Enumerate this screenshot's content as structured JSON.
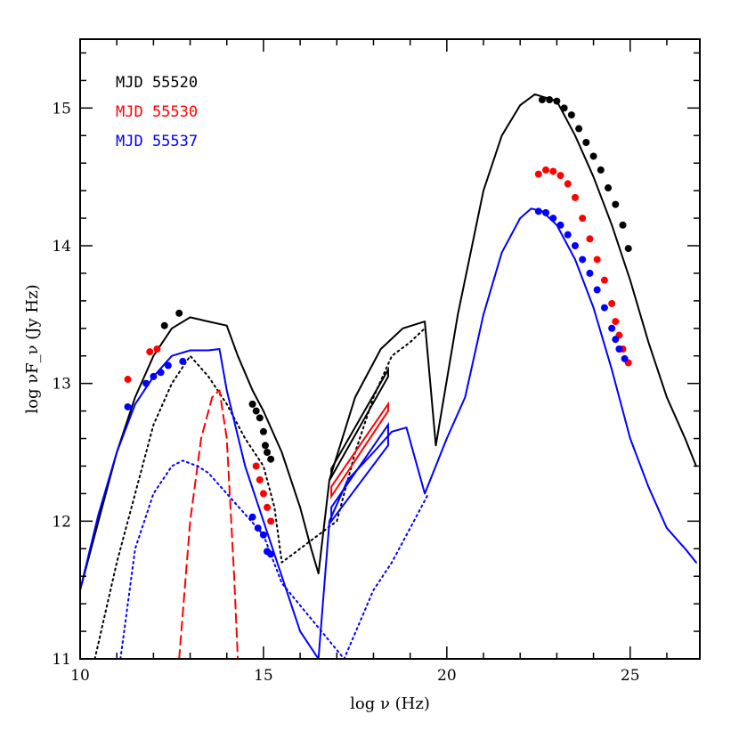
{
  "chart_data": {
    "type": "line",
    "title": "",
    "xlabel": "log ν (Hz)",
    "ylabel": "log νF_ν (Jy Hz)",
    "xlim": [
      10,
      26.9
    ],
    "ylim": [
      11,
      15.5
    ],
    "xticks": [
      10,
      15,
      20,
      25
    ],
    "yticks": [
      11,
      12,
      13,
      14,
      15
    ],
    "legend_position": "top-left",
    "legend": [
      {
        "label": "MJD 55520",
        "color": "#000000"
      },
      {
        "label": "MJD 55530",
        "color": "#ff0000"
      },
      {
        "label": "MJD 55537",
        "color": "#0000ff"
      }
    ],
    "lines": [
      {
        "epoch": "MJD 55520",
        "style": "solid",
        "color": "#000000",
        "points": [
          [
            10,
            11.5
          ],
          [
            10.5,
            12.0
          ],
          [
            11,
            12.5
          ],
          [
            11.5,
            12.9
          ],
          [
            12,
            13.2
          ],
          [
            12.5,
            13.4
          ],
          [
            13,
            13.48
          ],
          [
            13.5,
            13.45
          ],
          [
            14,
            13.42
          ],
          [
            14.3,
            13.2
          ],
          [
            14.7,
            12.95
          ],
          [
            15,
            12.8
          ],
          [
            15.5,
            12.5
          ],
          [
            16,
            12.1
          ],
          [
            16.3,
            11.8
          ],
          [
            16.5,
            11.62
          ],
          [
            16.8,
            12.3
          ],
          [
            17.5,
            12.9
          ],
          [
            18.2,
            13.25
          ],
          [
            18.8,
            13.4
          ],
          [
            19.4,
            13.45
          ],
          [
            19.7,
            12.55
          ],
          [
            20.3,
            13.5
          ],
          [
            21,
            14.4
          ],
          [
            21.5,
            14.8
          ],
          [
            22,
            15.02
          ],
          [
            22.4,
            15.1
          ],
          [
            23,
            15.05
          ],
          [
            23.5,
            14.8
          ],
          [
            24,
            14.5
          ],
          [
            24.5,
            14.15
          ],
          [
            25,
            13.75
          ],
          [
            25.5,
            13.3
          ],
          [
            26,
            12.9
          ],
          [
            26.5,
            12.6
          ],
          [
            26.8,
            12.4
          ]
        ]
      },
      {
        "epoch": "MJD 55520",
        "style": "dotted",
        "color": "#000000",
        "points": [
          [
            10.4,
            11.0
          ],
          [
            11,
            11.7
          ],
          [
            11.5,
            12.2
          ],
          [
            12,
            12.7
          ],
          [
            12.5,
            13.0
          ],
          [
            13,
            13.2
          ],
          [
            13.5,
            13.05
          ],
          [
            14,
            12.85
          ],
          [
            14.5,
            12.6
          ],
          [
            15,
            12.4
          ],
          [
            15.3,
            12.1
          ],
          [
            15.5,
            11.7
          ],
          [
            17,
            12.0
          ],
          [
            17.5,
            12.5
          ],
          [
            18,
            12.9
          ],
          [
            18.5,
            13.2
          ],
          [
            19,
            13.3
          ],
          [
            19.4,
            13.4
          ]
        ]
      },
      {
        "epoch": "MJD 55530",
        "style": "dashed",
        "color": "#ff0000",
        "points": [
          [
            12.7,
            11.0
          ],
          [
            13,
            12.0
          ],
          [
            13.3,
            12.6
          ],
          [
            13.6,
            12.9
          ],
          [
            13.8,
            12.95
          ],
          [
            14,
            12.6
          ],
          [
            14.2,
            11.6
          ],
          [
            14.3,
            11.0
          ]
        ]
      },
      {
        "epoch": "MJD 55537",
        "style": "solid",
        "color": "#0000ff",
        "points": [
          [
            10,
            11.5
          ],
          [
            10.5,
            12.05
          ],
          [
            11,
            12.5
          ],
          [
            11.5,
            12.85
          ],
          [
            12,
            13.05
          ],
          [
            12.5,
            13.2
          ],
          [
            13,
            13.24
          ],
          [
            13.5,
            13.24
          ],
          [
            13.8,
            13.25
          ],
          [
            14,
            12.95
          ],
          [
            14.5,
            12.4
          ],
          [
            15,
            12.0
          ],
          [
            15.5,
            11.6
          ],
          [
            16,
            11.2
          ],
          [
            16.5,
            11.0
          ],
          [
            16.8,
            12.0
          ],
          [
            17.3,
            12.3
          ],
          [
            18,
            12.5
          ],
          [
            18.5,
            12.65
          ],
          [
            18.9,
            12.68
          ],
          [
            19.4,
            12.2
          ],
          [
            20,
            12.6
          ],
          [
            20.5,
            12.9
          ],
          [
            21,
            13.5
          ],
          [
            21.5,
            13.95
          ],
          [
            22,
            14.2
          ],
          [
            22.3,
            14.27
          ],
          [
            22.6,
            14.25
          ],
          [
            23,
            14.15
          ],
          [
            23.5,
            13.9
          ],
          [
            24,
            13.55
          ],
          [
            24.5,
            13.1
          ],
          [
            25,
            12.6
          ],
          [
            25.5,
            12.25
          ],
          [
            26,
            11.95
          ],
          [
            26.5,
            11.8
          ],
          [
            26.8,
            11.7
          ]
        ]
      },
      {
        "epoch": "MJD 55537",
        "style": "dotted",
        "color": "#0000ff",
        "points": [
          [
            11.1,
            11.0
          ],
          [
            11.5,
            11.8
          ],
          [
            12,
            12.2
          ],
          [
            12.5,
            12.4
          ],
          [
            12.8,
            12.44
          ],
          [
            13.2,
            12.4
          ],
          [
            13.5,
            12.35
          ],
          [
            14,
            12.2
          ],
          [
            14.5,
            12.05
          ],
          [
            15,
            11.9
          ],
          [
            15.5,
            11.55
          ],
          [
            17.2,
            11.0
          ],
          [
            18,
            11.5
          ],
          [
            18.5,
            11.7
          ],
          [
            19,
            11.95
          ],
          [
            19.5,
            12.2
          ]
        ]
      }
    ],
    "bowties": [
      {
        "epoch": "MJD 55520",
        "color": "#000000",
        "x": [
          16.85,
          18.4
        ],
        "y_low": [
          12.32,
          13.05
        ],
        "y_high": [
          12.38,
          13.1
        ]
      },
      {
        "epoch": "MJD 55530",
        "color": "#ff0000",
        "x": [
          16.85,
          18.4
        ],
        "y_low": [
          12.18,
          12.8
        ],
        "y_high": [
          12.25,
          12.85
        ]
      },
      {
        "epoch": "MJD 55537",
        "color": "#0000ff",
        "x": [
          16.85,
          18.4
        ],
        "y_low": [
          12.0,
          12.55
        ],
        "y_high": [
          12.1,
          12.7
        ]
      }
    ],
    "points": [
      {
        "epoch": "MJD 55520",
        "color": "#000000",
        "values": [
          [
            12.3,
            13.42
          ],
          [
            12.7,
            13.51
          ],
          [
            14.7,
            12.85
          ],
          [
            14.8,
            12.8
          ],
          [
            14.9,
            12.75
          ],
          [
            15.0,
            12.65
          ],
          [
            15.05,
            12.55
          ],
          [
            15.1,
            12.5
          ],
          [
            15.2,
            12.45
          ],
          [
            22.6,
            15.06
          ],
          [
            22.8,
            15.06
          ],
          [
            23.0,
            15.05
          ],
          [
            23.2,
            15.0
          ],
          [
            23.4,
            14.95
          ],
          [
            23.6,
            14.85
          ],
          [
            23.8,
            14.75
          ],
          [
            24.0,
            14.65
          ],
          [
            24.2,
            14.55
          ],
          [
            24.4,
            14.42
          ],
          [
            24.6,
            14.3
          ],
          [
            24.8,
            14.15
          ],
          [
            24.95,
            13.98
          ]
        ]
      },
      {
        "epoch": "MJD 55530",
        "color": "#ff0000",
        "values": [
          [
            11.3,
            13.03
          ],
          [
            11.9,
            13.23
          ],
          [
            12.1,
            13.25
          ],
          [
            14.8,
            12.4
          ],
          [
            14.9,
            12.3
          ],
          [
            15.0,
            12.2
          ],
          [
            15.1,
            12.1
          ],
          [
            15.2,
            12.0
          ],
          [
            22.5,
            14.52
          ],
          [
            22.7,
            14.55
          ],
          [
            22.9,
            14.54
          ],
          [
            23.1,
            14.51
          ],
          [
            23.3,
            14.45
          ],
          [
            23.5,
            14.35
          ],
          [
            23.7,
            14.2
          ],
          [
            23.9,
            14.05
          ],
          [
            24.1,
            13.9
          ],
          [
            24.3,
            13.75
          ],
          [
            24.5,
            13.58
          ],
          [
            24.6,
            13.45
          ],
          [
            24.7,
            13.35
          ],
          [
            24.8,
            13.25
          ],
          [
            24.95,
            13.15
          ]
        ]
      },
      {
        "epoch": "MJD 55537",
        "color": "#0000ff",
        "values": [
          [
            11.3,
            12.83
          ],
          [
            11.8,
            13.0
          ],
          [
            12.0,
            13.05
          ],
          [
            12.2,
            13.08
          ],
          [
            12.4,
            13.13
          ],
          [
            12.8,
            13.16
          ],
          [
            14.7,
            12.03
          ],
          [
            14.85,
            11.95
          ],
          [
            15.0,
            11.9
          ],
          [
            15.1,
            11.78
          ],
          [
            15.2,
            11.76
          ],
          [
            22.5,
            14.25
          ],
          [
            22.7,
            14.24
          ],
          [
            22.9,
            14.2
          ],
          [
            23.1,
            14.15
          ],
          [
            23.3,
            14.08
          ],
          [
            23.5,
            14.0
          ],
          [
            23.7,
            13.9
          ],
          [
            23.9,
            13.8
          ],
          [
            24.1,
            13.68
          ],
          [
            24.3,
            13.55
          ],
          [
            24.5,
            13.4
          ],
          [
            24.6,
            13.32
          ],
          [
            24.7,
            13.25
          ],
          [
            24.85,
            13.18
          ]
        ]
      }
    ]
  }
}
